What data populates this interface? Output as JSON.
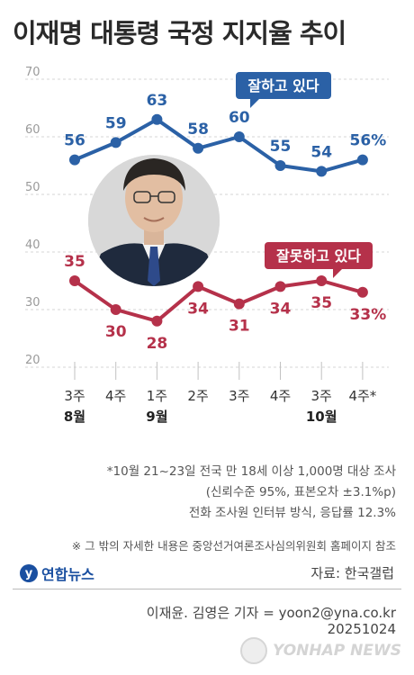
{
  "title": "이재명 대통령 국정 지지율 추이",
  "chart_data": {
    "type": "line",
    "categories": [
      "3주",
      "4주",
      "1주",
      "2주",
      "3주",
      "4주",
      "3주",
      "4주*"
    ],
    "months": [
      {
        "label": "8월",
        "category_index": 0
      },
      {
        "label": "9월",
        "category_index": 2
      },
      {
        "label": "10월",
        "category_index": 6
      }
    ],
    "ylim": [
      20,
      70
    ],
    "yticks": [
      20,
      30,
      40,
      50,
      60,
      70
    ],
    "series": [
      {
        "name": "잘하고 있다",
        "color": "#2b61a6",
        "values": [
          56,
          59,
          63,
          58,
          60,
          55,
          54,
          56
        ],
        "labels": [
          "56",
          "59",
          "63",
          "58",
          "60",
          "55",
          "54",
          "56%"
        ]
      },
      {
        "name": "잘못하고 있다",
        "color": "#b5314a",
        "values": [
          35,
          30,
          28,
          34,
          31,
          34,
          35,
          33
        ],
        "labels": [
          "35",
          "30",
          "28",
          "34",
          "31",
          "34",
          "35",
          "33%"
        ]
      }
    ],
    "grid": true
  },
  "notes": [
    "*10월 21~23일 전국 만 18세 이상 1,000명 대상 조사",
    "(신뢰수준 95%, 표본오차 ±3.1%p)",
    "전화 조사원 인터뷰 방식, 응답률 12.3%"
  ],
  "note2": "※ 그 밖의 자세한 내용은 중앙선거여론조사심의위원회 홈페이지 참조",
  "logo_text": "연합뉴스",
  "logo_glyph": "y",
  "source": "자료: 한국갤럽",
  "credit": "이재윤. 김영은 기자 = yoon2@yna.co.kr",
  "date": "20251024",
  "watermark": "YONHAP NEWS"
}
